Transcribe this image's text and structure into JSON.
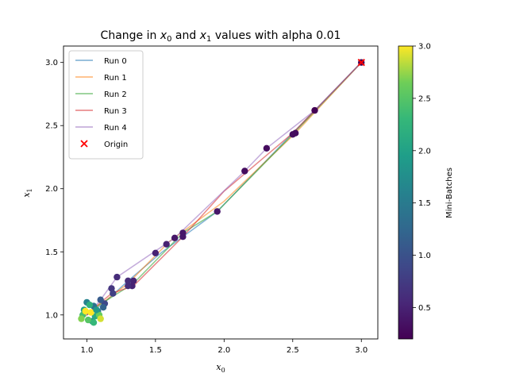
{
  "chart_data": {
    "type": "line",
    "title": "Change in x₀ and x₁ values with alpha 0.01",
    "title_parts": {
      "prefix": "Change in ",
      "v0": "x",
      "s0": "0",
      "mid": " and ",
      "v1": "x",
      "s1": "1",
      "suffix": " values with alpha 0.01"
    },
    "xlabel": {
      "var": "x",
      "sub": "0"
    },
    "ylabel": {
      "var": "x",
      "sub": "1"
    },
    "xlim": [
      0.83,
      3.12
    ],
    "ylim": [
      0.81,
      3.13
    ],
    "xticks": [
      1.0,
      1.5,
      2.0,
      2.5,
      3.0
    ],
    "xtick_labels": [
      "1.0",
      "1.5",
      "2.0",
      "2.5",
      "3.0"
    ],
    "yticks": [
      1.0,
      1.5,
      2.0,
      2.5,
      3.0
    ],
    "ytick_labels": [
      "1.0",
      "1.5",
      "2.0",
      "2.5",
      "3.0"
    ],
    "grid": false,
    "legend_position": "upper-left",
    "series": [
      {
        "name": "Run 0",
        "color": "#1f77b4",
        "points": [
          [
            3.0,
            3.0
          ],
          [
            2.5,
            2.44
          ],
          [
            1.95,
            1.82
          ],
          [
            1.55,
            1.5
          ],
          [
            1.3,
            1.27
          ],
          [
            1.15,
            1.12
          ],
          [
            1.07,
            1.05
          ],
          [
            1.02,
            1.02
          ],
          [
            1.0,
            1.0
          ]
        ]
      },
      {
        "name": "Run 1",
        "color": "#ff7f0e",
        "points": [
          [
            3.0,
            3.0
          ],
          [
            2.52,
            2.44
          ],
          [
            2.0,
            1.9
          ],
          [
            1.6,
            1.58
          ],
          [
            1.3,
            1.25
          ],
          [
            1.12,
            1.1
          ],
          [
            1.04,
            1.04
          ],
          [
            1.0,
            1.0
          ],
          [
            0.99,
            0.99
          ]
        ]
      },
      {
        "name": "Run 2",
        "color": "#2ca02c",
        "points": [
          [
            3.0,
            3.0
          ],
          [
            2.5,
            2.43
          ],
          [
            1.95,
            1.82
          ],
          [
            1.7,
            1.65
          ],
          [
            1.34,
            1.25
          ],
          [
            1.15,
            1.12
          ],
          [
            1.06,
            1.06
          ],
          [
            1.01,
            1.01
          ],
          [
            1.0,
            1.0
          ]
        ]
      },
      {
        "name": "Run 3",
        "color": "#d62728",
        "points": [
          [
            3.0,
            3.0
          ],
          [
            2.5,
            2.44
          ],
          [
            2.0,
            1.98
          ],
          [
            1.7,
            1.62
          ],
          [
            1.34,
            1.23
          ],
          [
            1.18,
            1.17
          ],
          [
            1.08,
            1.08
          ],
          [
            1.03,
            1.03
          ],
          [
            1.0,
            1.0
          ]
        ]
      },
      {
        "name": "Run 4",
        "color": "#9467bd",
        "points": [
          [
            3.0,
            3.0
          ],
          [
            2.66,
            2.62
          ],
          [
            2.31,
            2.32
          ],
          [
            2.15,
            2.14
          ],
          [
            1.64,
            1.61
          ],
          [
            1.22,
            1.3
          ],
          [
            1.1,
            1.12
          ],
          [
            1.03,
            1.03
          ],
          [
            1.0,
            1.0
          ]
        ]
      }
    ],
    "origin": {
      "name": "Origin",
      "color": "#ff0000",
      "point": [
        3.0,
        3.0
      ]
    },
    "minibatch_points": [
      [
        3.0,
        3.0,
        0.2
      ],
      [
        2.66,
        2.62,
        0.2
      ],
      [
        2.52,
        2.44,
        0.3
      ],
      [
        2.5,
        2.43,
        0.3
      ],
      [
        2.31,
        2.32,
        0.3
      ],
      [
        2.15,
        2.14,
        0.3
      ],
      [
        1.95,
        1.82,
        0.4
      ],
      [
        1.7,
        1.65,
        0.4
      ],
      [
        1.7,
        1.62,
        0.4
      ],
      [
        1.64,
        1.61,
        0.4
      ],
      [
        1.58,
        1.56,
        0.5
      ],
      [
        1.5,
        1.49,
        0.5
      ],
      [
        1.34,
        1.27,
        0.5
      ],
      [
        1.33,
        1.23,
        0.5
      ],
      [
        1.3,
        1.27,
        0.6
      ],
      [
        1.3,
        1.23,
        0.6
      ],
      [
        1.22,
        1.3,
        0.6
      ],
      [
        1.18,
        1.21,
        0.7
      ],
      [
        1.19,
        1.17,
        0.8
      ],
      [
        1.13,
        1.09,
        0.9
      ],
      [
        1.1,
        1.12,
        1.1
      ],
      [
        1.12,
        1.06,
        1.2
      ],
      [
        1.05,
        1.07,
        1.4
      ],
      [
        1.08,
        1.03,
        1.5
      ],
      [
        1.0,
        1.1,
        1.6
      ],
      [
        1.04,
        0.95,
        1.8
      ],
      [
        0.98,
        1.04,
        2.0
      ],
      [
        1.06,
        0.99,
        2.1
      ],
      [
        1.02,
        1.08,
        2.2
      ],
      [
        0.97,
        1.0,
        2.4
      ],
      [
        1.01,
        0.96,
        2.5
      ],
      [
        1.09,
        1.0,
        2.6
      ],
      [
        0.96,
        0.97,
        2.7
      ],
      [
        1.1,
        0.97,
        2.9
      ],
      [
        1.03,
        1.02,
        3.0
      ],
      [
        0.99,
        1.03,
        3.0
      ],
      [
        1.05,
        0.94,
        2.3
      ],
      [
        1.07,
        1.04,
        1.9
      ]
    ],
    "colorbar": {
      "label": "Mini-Batches",
      "range": [
        0.2,
        3.0
      ],
      "ticks": [
        0.5,
        1.0,
        1.5,
        2.0,
        2.5,
        3.0
      ],
      "tick_labels": [
        "0.5",
        "1.0",
        "1.5",
        "2.0",
        "2.5",
        "3.0"
      ],
      "colormap": "viridis"
    }
  }
}
